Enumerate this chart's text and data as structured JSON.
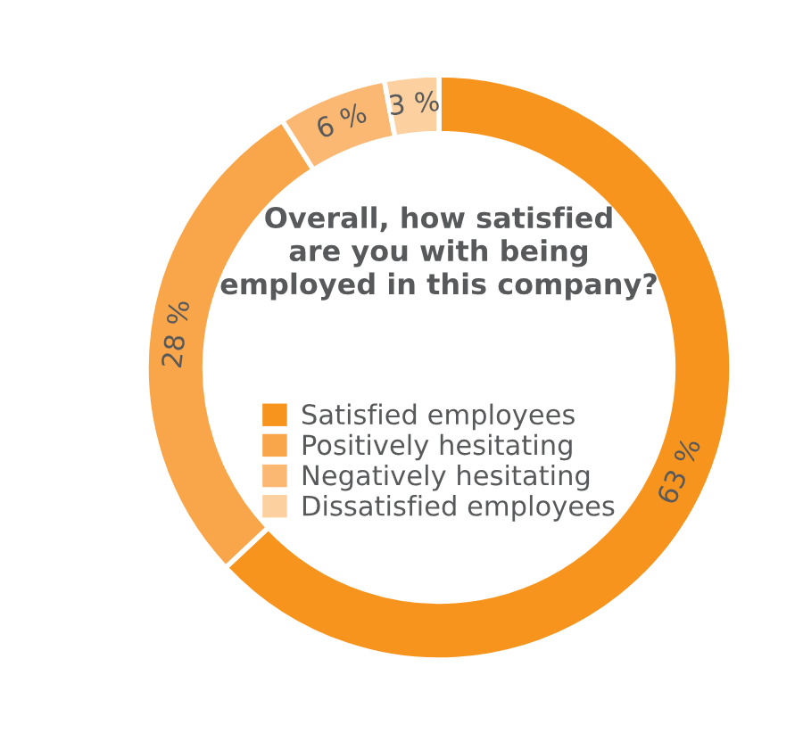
{
  "chart_data": {
    "type": "donut",
    "title": "Overall, how satisfied\nare you with being\nemployed in this company?",
    "categories": [
      "Satisfied employees",
      "Positively hesitating",
      "Negatively hesitating",
      "Dissatisfied employees"
    ],
    "values": [
      63,
      28,
      6,
      3
    ],
    "value_labels": [
      "63 %",
      "28 %",
      "6 %",
      "3 %"
    ],
    "colors": [
      "#f7941d",
      "#f9a54a",
      "#fbb872",
      "#fdd09f"
    ],
    "legend": "center"
  }
}
